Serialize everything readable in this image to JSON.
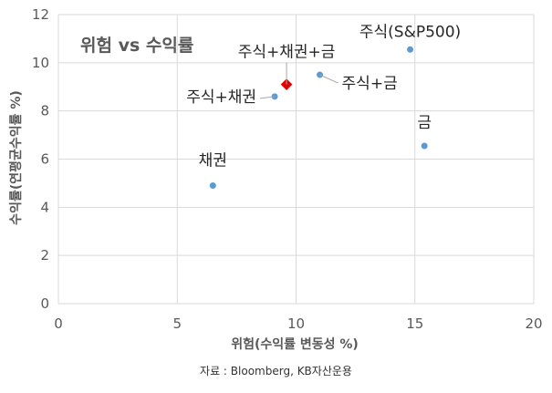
{
  "chart_data": {
    "type": "scatter",
    "title": "위험 vs 수익률",
    "xlabel": "위험(수익률 변동성 %)",
    "ylabel": "수익률(연평균수익률 %)",
    "xlim": [
      0,
      20
    ],
    "ylim": [
      0,
      12
    ],
    "x_ticks": [
      "0",
      "5",
      "10",
      "15",
      "20"
    ],
    "y_ticks": [
      "0",
      "2",
      "4",
      "6",
      "8",
      "10",
      "12"
    ],
    "grid": "horizontal and vertical",
    "point_color": "#5b9bd5",
    "highlight_color": "#e00000",
    "points": [
      {
        "label": "채권",
        "x": 6.5,
        "y": 4.9,
        "highlight": false
      },
      {
        "label": "주식+채권",
        "x": 9.1,
        "y": 8.6,
        "highlight": false
      },
      {
        "label": "주식+채권+금",
        "x": 9.6,
        "y": 9.1,
        "highlight": true
      },
      {
        "label": "주식+금",
        "x": 11.0,
        "y": 9.5,
        "highlight": false
      },
      {
        "label": "주식(S&P500)",
        "x": 14.8,
        "y": 10.55,
        "highlight": false
      },
      {
        "label": "금",
        "x": 15.4,
        "y": 6.55,
        "highlight": false
      }
    ]
  },
  "source": "자료 : Bloomberg, KB자산운용"
}
